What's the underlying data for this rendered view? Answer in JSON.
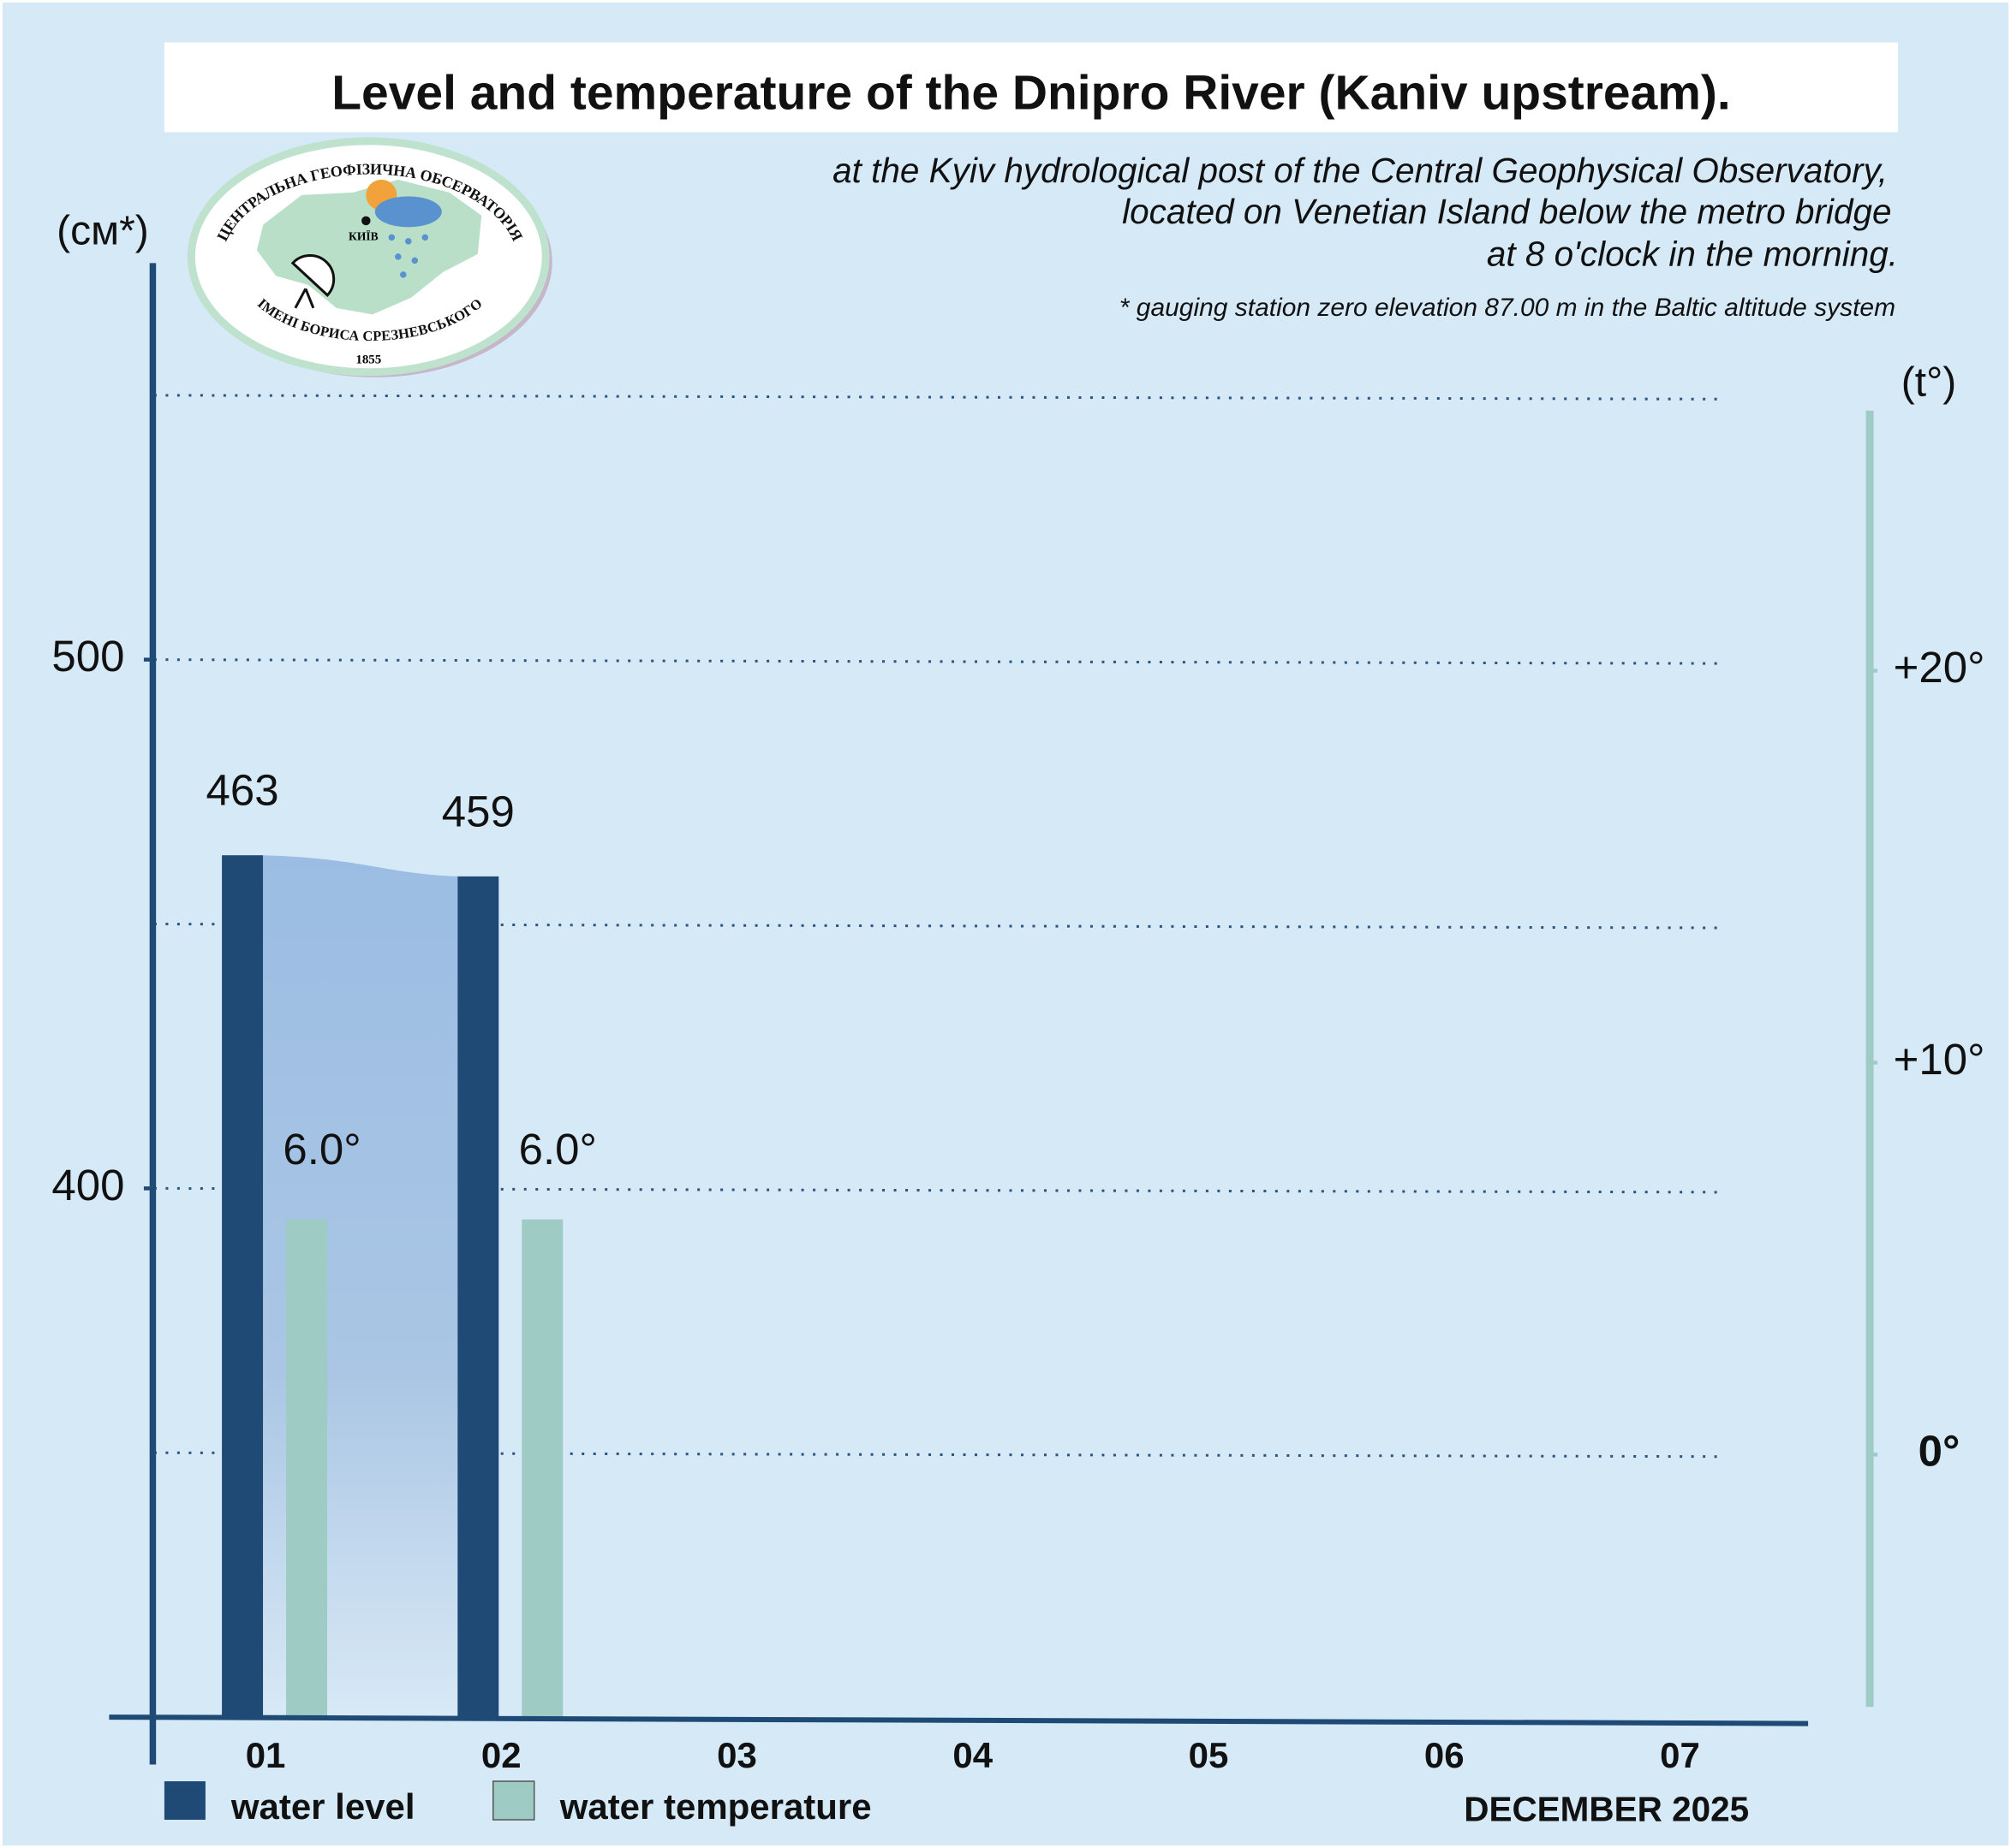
{
  "chart_data": {
    "type": "bar",
    "title": "Level and temperature of the Dnipro River (Kaniv upstream).",
    "subtitle": [
      "at the Kyiv hydrological post of the Central Geophysical Observatory,",
      "located on Venetian Island below the metro bridge",
      "at 8 o'clock in the morning."
    ],
    "footnote": "* gauging station zero elevation 87.00 m in the Baltic altitude system",
    "y_label": "(см*)",
    "y2_label": "(t°)",
    "x_label": "DECEMBER 2025",
    "categories": [
      "01",
      "02",
      "03",
      "04",
      "05",
      "06",
      "07"
    ],
    "series": [
      {
        "name": "water level",
        "color": "#1f4a75",
        "values": [
          463,
          459,
          null,
          null,
          null,
          null,
          null
        ]
      },
      {
        "name": "water temperature",
        "color": "#9fcbc5",
        "axis": "y2",
        "values": [
          6.0,
          6.0,
          null,
          null,
          null,
          null,
          null
        ],
        "value_labels": [
          "6.0°",
          "6.0°",
          null,
          null,
          null,
          null,
          null
        ]
      }
    ],
    "ylim": [
      300,
      575
    ],
    "yticks": [
      400,
      500
    ],
    "ygrid": [
      350,
      400,
      450,
      500,
      550
    ],
    "y2lim": [
      -6.7,
      30.4
    ],
    "y2ticks": [
      {
        "value": 0,
        "label": "0°"
      },
      {
        "value": 10,
        "label": "+10°"
      },
      {
        "value": 20,
        "label": "+20°"
      }
    ],
    "grid": true,
    "area_between_level_bars": true
  },
  "logo": {
    "top_text": "ЦЕНТРАЛЬНА ГЕОФІЗИЧНА ОБСЕРВАТОРІЯ",
    "bottom_text": "ІМЕНІ БОРИСА СРЕЗНЕВСЬКОГО",
    "year": "1855",
    "city": "КИЇВ"
  }
}
